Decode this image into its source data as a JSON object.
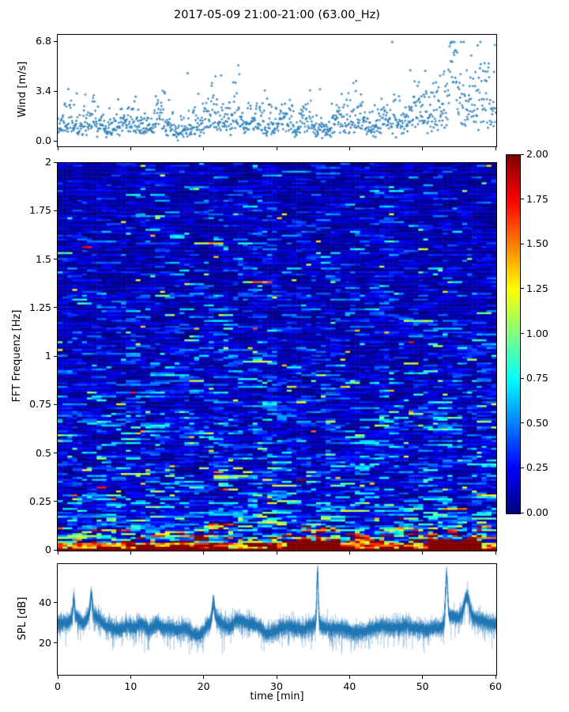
{
  "figure": {
    "title": "2017-05-09 21:00-21:00 (63.00_Hz)"
  },
  "colors": {
    "series_blue": "#1f77b4",
    "axis": "#000000",
    "background": "#ffffff"
  },
  "chart_data": [
    {
      "id": "wind",
      "type": "scatter",
      "ylabel": "Wind [m/s]",
      "marker": "+",
      "color": "#1f77b4",
      "xlim": [
        0,
        60
      ],
      "ylim": [
        -0.32,
        7.29
      ],
      "yticks": [
        {
          "v": 0.0,
          "label": "0.0"
        },
        {
          "v": 3.4,
          "label": "3.4"
        },
        {
          "v": 6.8,
          "label": "6.8"
        }
      ],
      "xtick_values": [
        0,
        10,
        20,
        30,
        40,
        50,
        60
      ],
      "show_xtick_labels": false,
      "sample_interval_min": 0.052,
      "seed": 11,
      "minute_mean_mps": [
        1.2,
        1.8,
        1.1,
        1.0,
        1.9,
        1.2,
        0.9,
        1.0,
        1.2,
        1.4,
        1.5,
        1.2,
        0.9,
        1.6,
        1.7,
        1.1,
        0.8,
        0.9,
        1.3,
        1.1,
        1.7,
        1.9,
        1.3,
        1.4,
        1.8,
        1.3,
        1.5,
        1.7,
        1.2,
        1.1,
        1.8,
        1.6,
        1.2,
        1.7,
        1.4,
        1.1,
        0.9,
        1.2,
        1.7,
        1.3,
        1.5,
        1.6,
        1.1,
        1.0,
        1.6,
        1.7,
        1.1,
        1.7,
        2.0,
        1.9,
        2.3,
        2.1,
        1.9,
        2.8,
        3.2,
        2.3,
        2.2,
        2.5,
        2.7,
        2.4
      ],
      "gust_lognorm_sigma": 0.42,
      "event": {
        "t_start": 52.7,
        "t_end": 55.4,
        "peak_t": 54.05,
        "peak_extra": 3.6,
        "width_min": 0.55,
        "max_mps": 6.8
      }
    },
    {
      "id": "fft-spectrogram",
      "type": "heatmap",
      "ylabel": "FFT Frequenz [Hz]",
      "xlim": [
        0,
        60
      ],
      "ylim": [
        0,
        2
      ],
      "clim": [
        0,
        2
      ],
      "colormap": "jet",
      "yticks": [
        {
          "v": 0,
          "label": "0"
        },
        {
          "v": 0.25,
          "label": "0.25"
        },
        {
          "v": 0.5,
          "label": "0.5"
        },
        {
          "v": 0.75,
          "label": "0.75"
        },
        {
          "v": 1,
          "label": "1"
        },
        {
          "v": 1.25,
          "label": "1.25"
        },
        {
          "v": 1.5,
          "label": "1.5"
        },
        {
          "v": 1.75,
          "label": "1.75"
        },
        {
          "v": 2,
          "label": "2"
        }
      ],
      "xtick_values": [
        0,
        10,
        20,
        30,
        40,
        50,
        60
      ],
      "show_xtick_labels": false,
      "grid": {
        "cols": 90,
        "rows": 200
      },
      "seed": 42,
      "mean_level_by_freq": [
        [
          0.0,
          2.0
        ],
        [
          0.015,
          1.7
        ],
        [
          0.03,
          1.3
        ],
        [
          0.05,
          0.95
        ],
        [
          0.08,
          0.6
        ],
        [
          0.12,
          0.42
        ],
        [
          0.2,
          0.32
        ],
        [
          0.35,
          0.28
        ],
        [
          0.5,
          0.25
        ],
        [
          0.7,
          0.23
        ],
        [
          0.9,
          0.2
        ],
        [
          1.2,
          0.17
        ],
        [
          1.6,
          0.15
        ],
        [
          2.0,
          0.13
        ]
      ],
      "streak_exponential_mean": 0.95,
      "cyan_band": {
        "f0": 0.55,
        "f1": 0.72,
        "t0": 0,
        "t1": 32,
        "gain": 1.8,
        "prob": 0.3
      },
      "low_freq_bursts": [
        {
          "t0": 8,
          "t1": 12,
          "gain": 1.8
        },
        {
          "t0": 19,
          "t1": 23,
          "gain": 2.2
        },
        {
          "t0": 31.5,
          "t1": 38.5,
          "gain": 3.0
        },
        {
          "t0": 51,
          "t1": 58,
          "gain": 2.6
        }
      ],
      "column_enhancements": [
        {
          "t0": 20.5,
          "t1": 23,
          "gain": 1.3
        },
        {
          "t0": 27,
          "t1": 30,
          "gain": 1.25
        },
        {
          "t0": 43.5,
          "t1": 46,
          "gain": 1.2
        }
      ],
      "bottom_band_value": 2.0
    },
    {
      "id": "spl",
      "type": "line",
      "ylabel": "SPL [dB]",
      "xlabel": "time [min]",
      "color": "#1f77b4",
      "xlim": [
        0,
        60
      ],
      "ylim": [
        4.7,
        59.6
      ],
      "yticks": [
        {
          "v": 20,
          "label": "20"
        },
        {
          "v": 40,
          "label": "40"
        }
      ],
      "xticks": [
        {
          "v": 0,
          "label": "0"
        },
        {
          "v": 10,
          "label": "10"
        },
        {
          "v": 20,
          "label": "20"
        },
        {
          "v": 30,
          "label": "30"
        },
        {
          "v": 40,
          "label": "40"
        },
        {
          "v": 50,
          "label": "50"
        },
        {
          "v": 60,
          "label": "60"
        }
      ],
      "show_xtick_labels": true,
      "seed": 7,
      "sample_interval_min": 0.01,
      "minute_mean_db": [
        30,
        31,
        34,
        30,
        35,
        33,
        29,
        28,
        27,
        29,
        28,
        30,
        27,
        30,
        28,
        28,
        27,
        28,
        25,
        24,
        29,
        33,
        30,
        28,
        32,
        31,
        30,
        29,
        25,
        26,
        28,
        29,
        28,
        27,
        29,
        30,
        28,
        28,
        28,
        27,
        26,
        26,
        27,
        28,
        29,
        28,
        28,
        29,
        28,
        28,
        27,
        28,
        28,
        34,
        33,
        34,
        33,
        32,
        31,
        30
      ],
      "noise_sigma_db": 2.4,
      "spikes": [
        {
          "t": 2.2,
          "amp": 9,
          "w": 0.15
        },
        {
          "t": 4.6,
          "amp": 10,
          "w": 0.2
        },
        {
          "t": 21.3,
          "amp": 9,
          "w": 0.2
        },
        {
          "t": 35.55,
          "amp": 26,
          "w": 0.15
        },
        {
          "t": 53.2,
          "amp": 22,
          "w": 0.2
        },
        {
          "t": 56.0,
          "amp": 10,
          "w": 0.5
        }
      ]
    }
  ],
  "colorbar": {
    "colormap": "jet",
    "clim": [
      0,
      2
    ],
    "ticks": [
      {
        "v": 0,
        "label": "0.00"
      },
      {
        "v": 0.25,
        "label": "0.25"
      },
      {
        "v": 0.5,
        "label": "0.50"
      },
      {
        "v": 0.75,
        "label": "0.75"
      },
      {
        "v": 1,
        "label": "1.00"
      },
      {
        "v": 1.25,
        "label": "1.25"
      },
      {
        "v": 1.5,
        "label": "1.50"
      },
      {
        "v": 1.75,
        "label": "1.75"
      },
      {
        "v": 2,
        "label": "2.00"
      }
    ]
  }
}
